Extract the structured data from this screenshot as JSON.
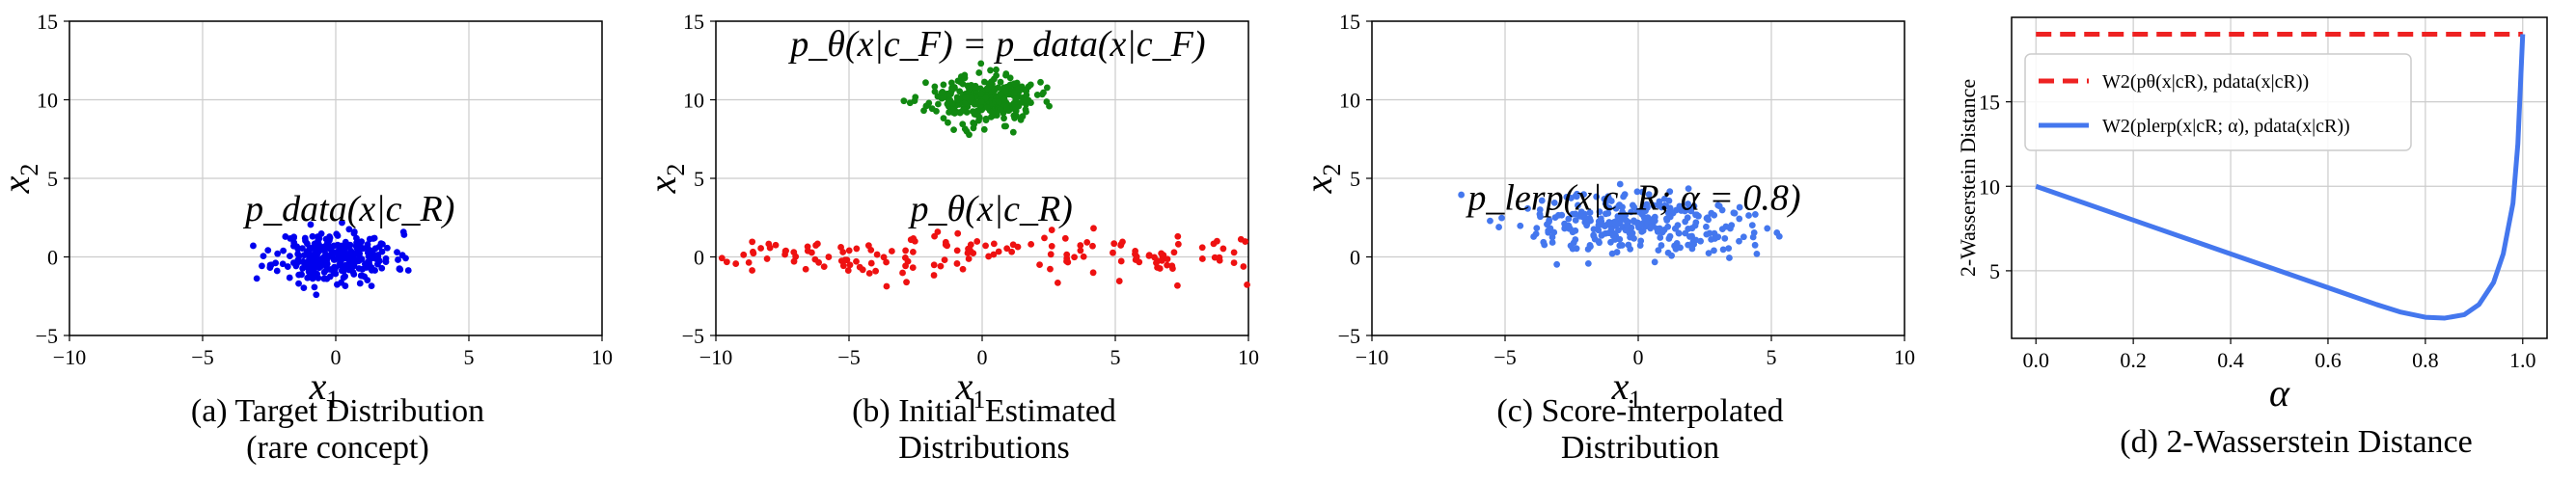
{
  "colors": {
    "blue": "#0000ee",
    "red": "#ee1111",
    "green": "#118811",
    "lightblue": "#4477ee",
    "dashed_red": "#ee2222",
    "curve_blue": "#4477ee",
    "grid": "#cccccc"
  },
  "chart_data": [
    {
      "type": "scatter",
      "caption": "(a) Target Distribution\n(rare concept)",
      "xlabel": "x1",
      "ylabel": "x2",
      "xlim": [
        -10,
        10
      ],
      "ylim": [
        -5,
        15
      ],
      "xticks": [
        -10,
        -5,
        0,
        5,
        10
      ],
      "yticks": [
        -5,
        0,
        5,
        10,
        15
      ],
      "grid": true,
      "annotations": [
        {
          "text": "p_data(x|c_R)",
          "x": -3.4,
          "y": 2.3
        }
      ],
      "series": [
        {
          "color": "#0000ee",
          "center": [
            0,
            0
          ],
          "spread": [
            1.1,
            0.8
          ],
          "count": 300,
          "seed": 11
        }
      ]
    },
    {
      "type": "scatter",
      "caption": "(b) Initial Estimated\nDistributions",
      "xlabel": "x1",
      "ylabel": "x2",
      "xlim": [
        -10,
        10
      ],
      "ylim": [
        -5,
        15
      ],
      "xticks": [
        -10,
        -5,
        0,
        5,
        10
      ],
      "yticks": [
        -5,
        0,
        5,
        10,
        15
      ],
      "grid": true,
      "annotations": [
        {
          "text": "p_θ(x|c_F) = p_data(x|c_F)",
          "x": -7.2,
          "y": 12.8
        },
        {
          "text": "p_θ(x|c_R)",
          "x": -2.7,
          "y": 2.3
        }
      ],
      "series": [
        {
          "color": "#118811",
          "center": [
            0,
            10
          ],
          "spread": [
            1.0,
            0.75
          ],
          "count": 300,
          "seed": 23
        },
        {
          "color": "#ee1111",
          "center": [
            0,
            0
          ],
          "spread": [
            6.0,
            0.75
          ],
          "count": 160,
          "seed": 37,
          "uniform_x": true
        }
      ]
    },
    {
      "type": "scatter",
      "caption": "(c) Score-interpolated\nDistribution",
      "xlabel": "x1",
      "ylabel": "x2",
      "xlim": [
        -10,
        10
      ],
      "ylim": [
        -5,
        15
      ],
      "xticks": [
        -10,
        -5,
        0,
        5,
        10
      ],
      "yticks": [
        -5,
        0,
        5,
        10,
        15
      ],
      "grid": true,
      "annotations": [
        {
          "text": "p_lerp(x|c_R; α = 0.8)",
          "x": -6.4,
          "y": 3.0
        }
      ],
      "series": [
        {
          "color": "#4477ee",
          "center": [
            0,
            2
          ],
          "spread": [
            2.2,
            1.0
          ],
          "count": 300,
          "seed": 51
        }
      ]
    },
    {
      "type": "line",
      "caption": "(d) 2-Wasserstein Distance",
      "xlabel": "α",
      "ylabel": "2-Wasserstein Distance",
      "xlim": [
        -0.05,
        1.05
      ],
      "ylim": [
        1,
        20
      ],
      "xticks": [
        0.0,
        0.2,
        0.4,
        0.6,
        0.8,
        1.0
      ],
      "yticks": [
        5,
        10,
        15
      ],
      "grid": true,
      "legend_position": "upper-left",
      "series": [
        {
          "name": "W2(pθ(x|cR), pdata(x|cR))",
          "color": "#ee2222",
          "style": "dashed",
          "x": [
            0,
            1
          ],
          "y": [
            19,
            19
          ]
        },
        {
          "name": "W2(plerp(x|cR; α), pdata(x|cR))",
          "color": "#4477ee",
          "style": "solid",
          "x": [
            0,
            0.1,
            0.2,
            0.3,
            0.4,
            0.5,
            0.6,
            0.7,
            0.75,
            0.8,
            0.84,
            0.88,
            0.91,
            0.94,
            0.96,
            0.98,
            0.99,
            1.0
          ],
          "y": [
            10,
            9.0,
            8.0,
            7.0,
            6.0,
            5.0,
            4.0,
            3.0,
            2.55,
            2.25,
            2.2,
            2.4,
            3.0,
            4.3,
            6.0,
            9.0,
            12.5,
            19
          ]
        }
      ]
    }
  ]
}
